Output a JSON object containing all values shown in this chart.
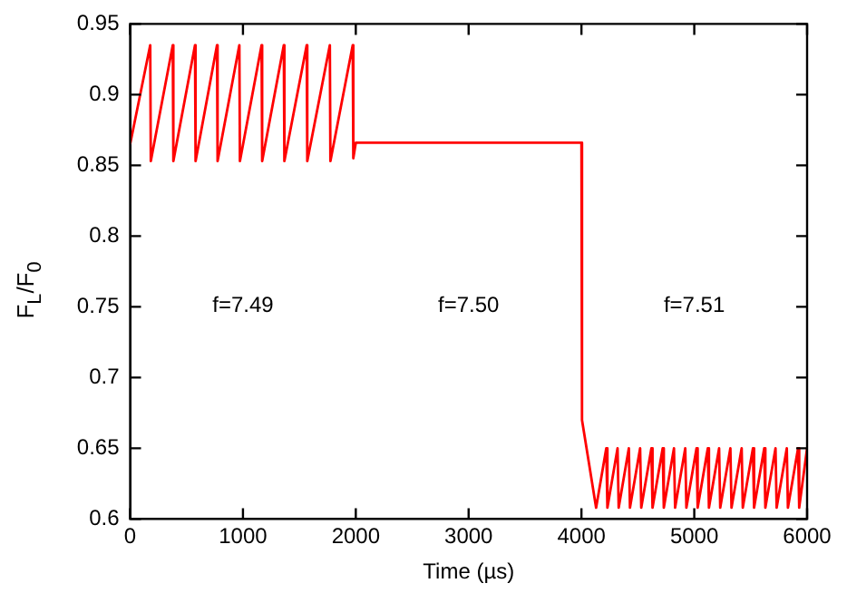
{
  "chart_data": {
    "type": "line",
    "xlabel": "Time (µs)",
    "ylabel": "F$_{L}$/F$_{0}$",
    "x": [
      0,
      178,
      183,
      378,
      383,
      575,
      580,
      770,
      775,
      968,
      973,
      1165,
      1170,
      1362,
      1367,
      1565,
      1570,
      1770,
      1775,
      1973,
      1978,
      2000,
      4000,
      4005,
      4130,
      4220,
      4230,
      4320,
      4330,
      4420,
      4430,
      4520,
      4530,
      4620,
      4630,
      4720,
      4730,
      4820,
      4830,
      4920,
      4930,
      5020,
      5030,
      5120,
      5130,
      5220,
      5230,
      5320,
      5330,
      5420,
      5430,
      5520,
      5530,
      5620,
      5630,
      5720,
      5730,
      5820,
      5830,
      5920,
      5930,
      6000
    ],
    "series": [
      {
        "color": "#ff0000",
        "values": [
          0.865,
          0.935,
          0.853,
          0.935,
          0.853,
          0.935,
          0.853,
          0.935,
          0.853,
          0.935,
          0.853,
          0.935,
          0.853,
          0.935,
          0.853,
          0.935,
          0.853,
          0.935,
          0.853,
          0.935,
          0.855,
          0.866,
          0.866,
          0.67,
          0.608,
          0.65,
          0.608,
          0.65,
          0.608,
          0.65,
          0.608,
          0.65,
          0.608,
          0.65,
          0.608,
          0.65,
          0.608,
          0.65,
          0.608,
          0.65,
          0.608,
          0.65,
          0.608,
          0.65,
          0.608,
          0.65,
          0.608,
          0.65,
          0.608,
          0.65,
          0.608,
          0.65,
          0.608,
          0.65,
          0.608,
          0.65,
          0.608,
          0.65,
          0.608,
          0.65,
          0.608,
          0.65
        ]
      }
    ],
    "xlim": [
      0,
      6000
    ],
    "xticks": [
      0,
      1000,
      2000,
      3000,
      4000,
      5000,
      6000
    ],
    "ylim": [
      0.6,
      0.95
    ],
    "yticks": [
      0.6,
      0.65,
      0.7,
      0.75,
      0.8,
      0.85,
      0.9,
      0.95
    ],
    "grid": false,
    "legend": false,
    "marker": "none",
    "line_style": "solid",
    "annotations": [
      "f=7.49",
      "f=7.50",
      "f=7.51"
    ]
  }
}
